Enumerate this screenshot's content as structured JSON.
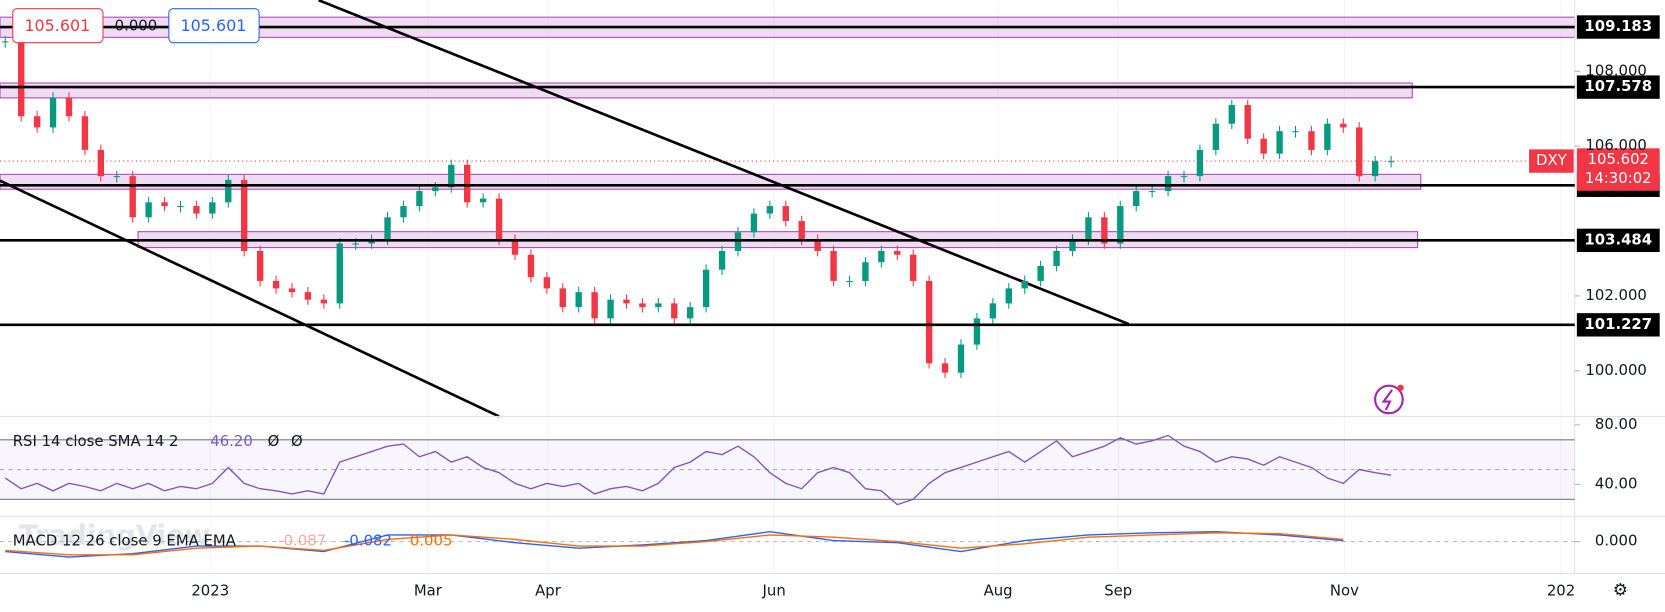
{
  "header": {
    "price_a": "105.601",
    "change": "0.000",
    "price_b": "105.601"
  },
  "chart_data": {
    "type": "candlestick",
    "symbol": "DXY",
    "last_price": 105.602,
    "countdown": "14:30:02",
    "closes": [
      108.8,
      106.8,
      106.5,
      107.3,
      106.8,
      105.9,
      105.2,
      105.2,
      104.1,
      104.5,
      104.4,
      104.4,
      104.2,
      104.5,
      105.1,
      103.2,
      102.4,
      102.2,
      102.1,
      101.9,
      101.8,
      103.4,
      103.4,
      103.5,
      104.1,
      104.4,
      104.8,
      104.9,
      105.5,
      104.5,
      104.6,
      103.5,
      103.1,
      102.5,
      102.2,
      101.7,
      102.1,
      101.4,
      101.9,
      101.8,
      101.7,
      101.8,
      101.4,
      101.7,
      102.7,
      103.2,
      103.7,
      104.2,
      104.4,
      104.0,
      103.5,
      103.2,
      102.4,
      102.4,
      102.9,
      103.2,
      103.1,
      102.4,
      100.2,
      99.95,
      100.7,
      101.4,
      101.8,
      102.2,
      102.4,
      102.8,
      103.2,
      103.5,
      104.1,
      103.4,
      104.4,
      104.8,
      104.8,
      105.2,
      105.2,
      105.9,
      106.6,
      107.1,
      106.2,
      105.8,
      106.4,
      106.4,
      105.9,
      106.6,
      106.5,
      105.2,
      105.6,
      105.6
    ],
    "xlim": [
      -0.33,
      98.53
    ],
    "ylim": [
      98.78,
      109.9
    ],
    "yticks": [
      {
        "value": 108,
        "label": "108.000"
      },
      {
        "value": 106,
        "label": "106.000"
      },
      {
        "value": 102,
        "label": "102.000"
      },
      {
        "value": 100,
        "label": "100.000"
      }
    ],
    "xticks": [
      {
        "value": 12.87,
        "label": "2023"
      },
      {
        "value": 26.53,
        "label": "Mar"
      },
      {
        "value": 34.07,
        "label": "Apr"
      },
      {
        "value": 48.27,
        "label": "Jun"
      },
      {
        "value": 62.33,
        "label": "Aug"
      },
      {
        "value": 69.87,
        "label": "Sep"
      },
      {
        "value": 84.07,
        "label": "Nov"
      },
      {
        "value": 97.67,
        "label": "202"
      }
    ],
    "levels": [
      109.183,
      107.578,
      104.955,
      103.484,
      101.227
    ],
    "up_color": "#089981",
    "down_color": "#f23645",
    "rsi": {
      "title": "RSI 14 close SMA 14 2",
      "value_label": "46.20",
      "flags": [
        "Ø",
        "Ø"
      ],
      "color": "#7e57c2",
      "values": [
        44.3,
        37.1,
        40.7,
        35.7,
        40.7,
        38.6,
        35.7,
        40.7,
        37.1,
        40.7,
        35.7,
        38.6,
        37.1,
        40.7,
        51.4,
        40.7,
        37.1,
        35.7,
        33.6,
        35.7,
        33.6,
        55,
        58.6,
        62.1,
        65.7,
        67.1,
        58.6,
        62.1,
        55,
        58.6,
        51.4,
        47.9,
        40.7,
        37.1,
        40.7,
        38.6,
        40.7,
        33.6,
        37.1,
        38.6,
        35.7,
        40.7,
        51.4,
        55,
        62.1,
        60,
        65.7,
        58.6,
        47.9,
        40.7,
        37.1,
        47.9,
        51.4,
        47.9,
        37.1,
        35.7,
        26.4,
        30,
        40.7,
        47.9,
        51.4,
        55,
        58.6,
        62.1,
        55,
        62.1,
        69.3,
        58.6,
        62.1,
        65.7,
        71.4,
        67.1,
        69.3,
        72.9,
        65.7,
        62.1,
        55,
        58.6,
        57.1,
        52.9,
        58.6,
        55,
        51.4,
        44.3,
        40.7,
        50,
        47.9,
        46.2
      ],
      "ylim": [
        18.6,
        85.7
      ],
      "yticks": [
        {
          "value": 80,
          "label": "80.00"
        },
        {
          "value": 40,
          "label": "40.00"
        }
      ],
      "bounds": [
        70,
        50,
        30
      ]
    },
    "macd": {
      "title": "MACD 12 26 close 9 EMA EMA",
      "labels": [
        "-0.087",
        "-0.082",
        "0.005"
      ],
      "line_color": "#2962ff",
      "signal_color": "#ff6d00",
      "x": [
        0,
        4,
        8,
        12,
        16,
        20,
        24,
        28,
        32,
        36,
        40,
        44,
        48,
        52,
        56,
        60,
        64,
        68,
        72,
        76,
        80,
        84
      ],
      "macd": [
        -0.225,
        -0.35,
        -0.275,
        -0.1,
        -0.1,
        -0.225,
        0.15,
        0.15,
        -0.025,
        -0.15,
        -0.075,
        0.025,
        0.225,
        0.025,
        -0.025,
        -0.225,
        0.025,
        0.15,
        0.2,
        0.225,
        0.15,
        0.02
      ],
      "signal": [
        -0.2,
        -0.3,
        -0.3,
        -0.15,
        -0.1,
        -0.2,
        0.05,
        0.15,
        0.05,
        -0.1,
        -0.1,
        0,
        0.15,
        0.1,
        0,
        -0.15,
        -0.05,
        0.1,
        0.15,
        0.2,
        0.18,
        0.05
      ],
      "ylim": [
        -0.725,
        0.575
      ],
      "yticks": [
        {
          "value": 0,
          "label": "0.000"
        }
      ]
    },
    "watermark": "TradingView"
  }
}
